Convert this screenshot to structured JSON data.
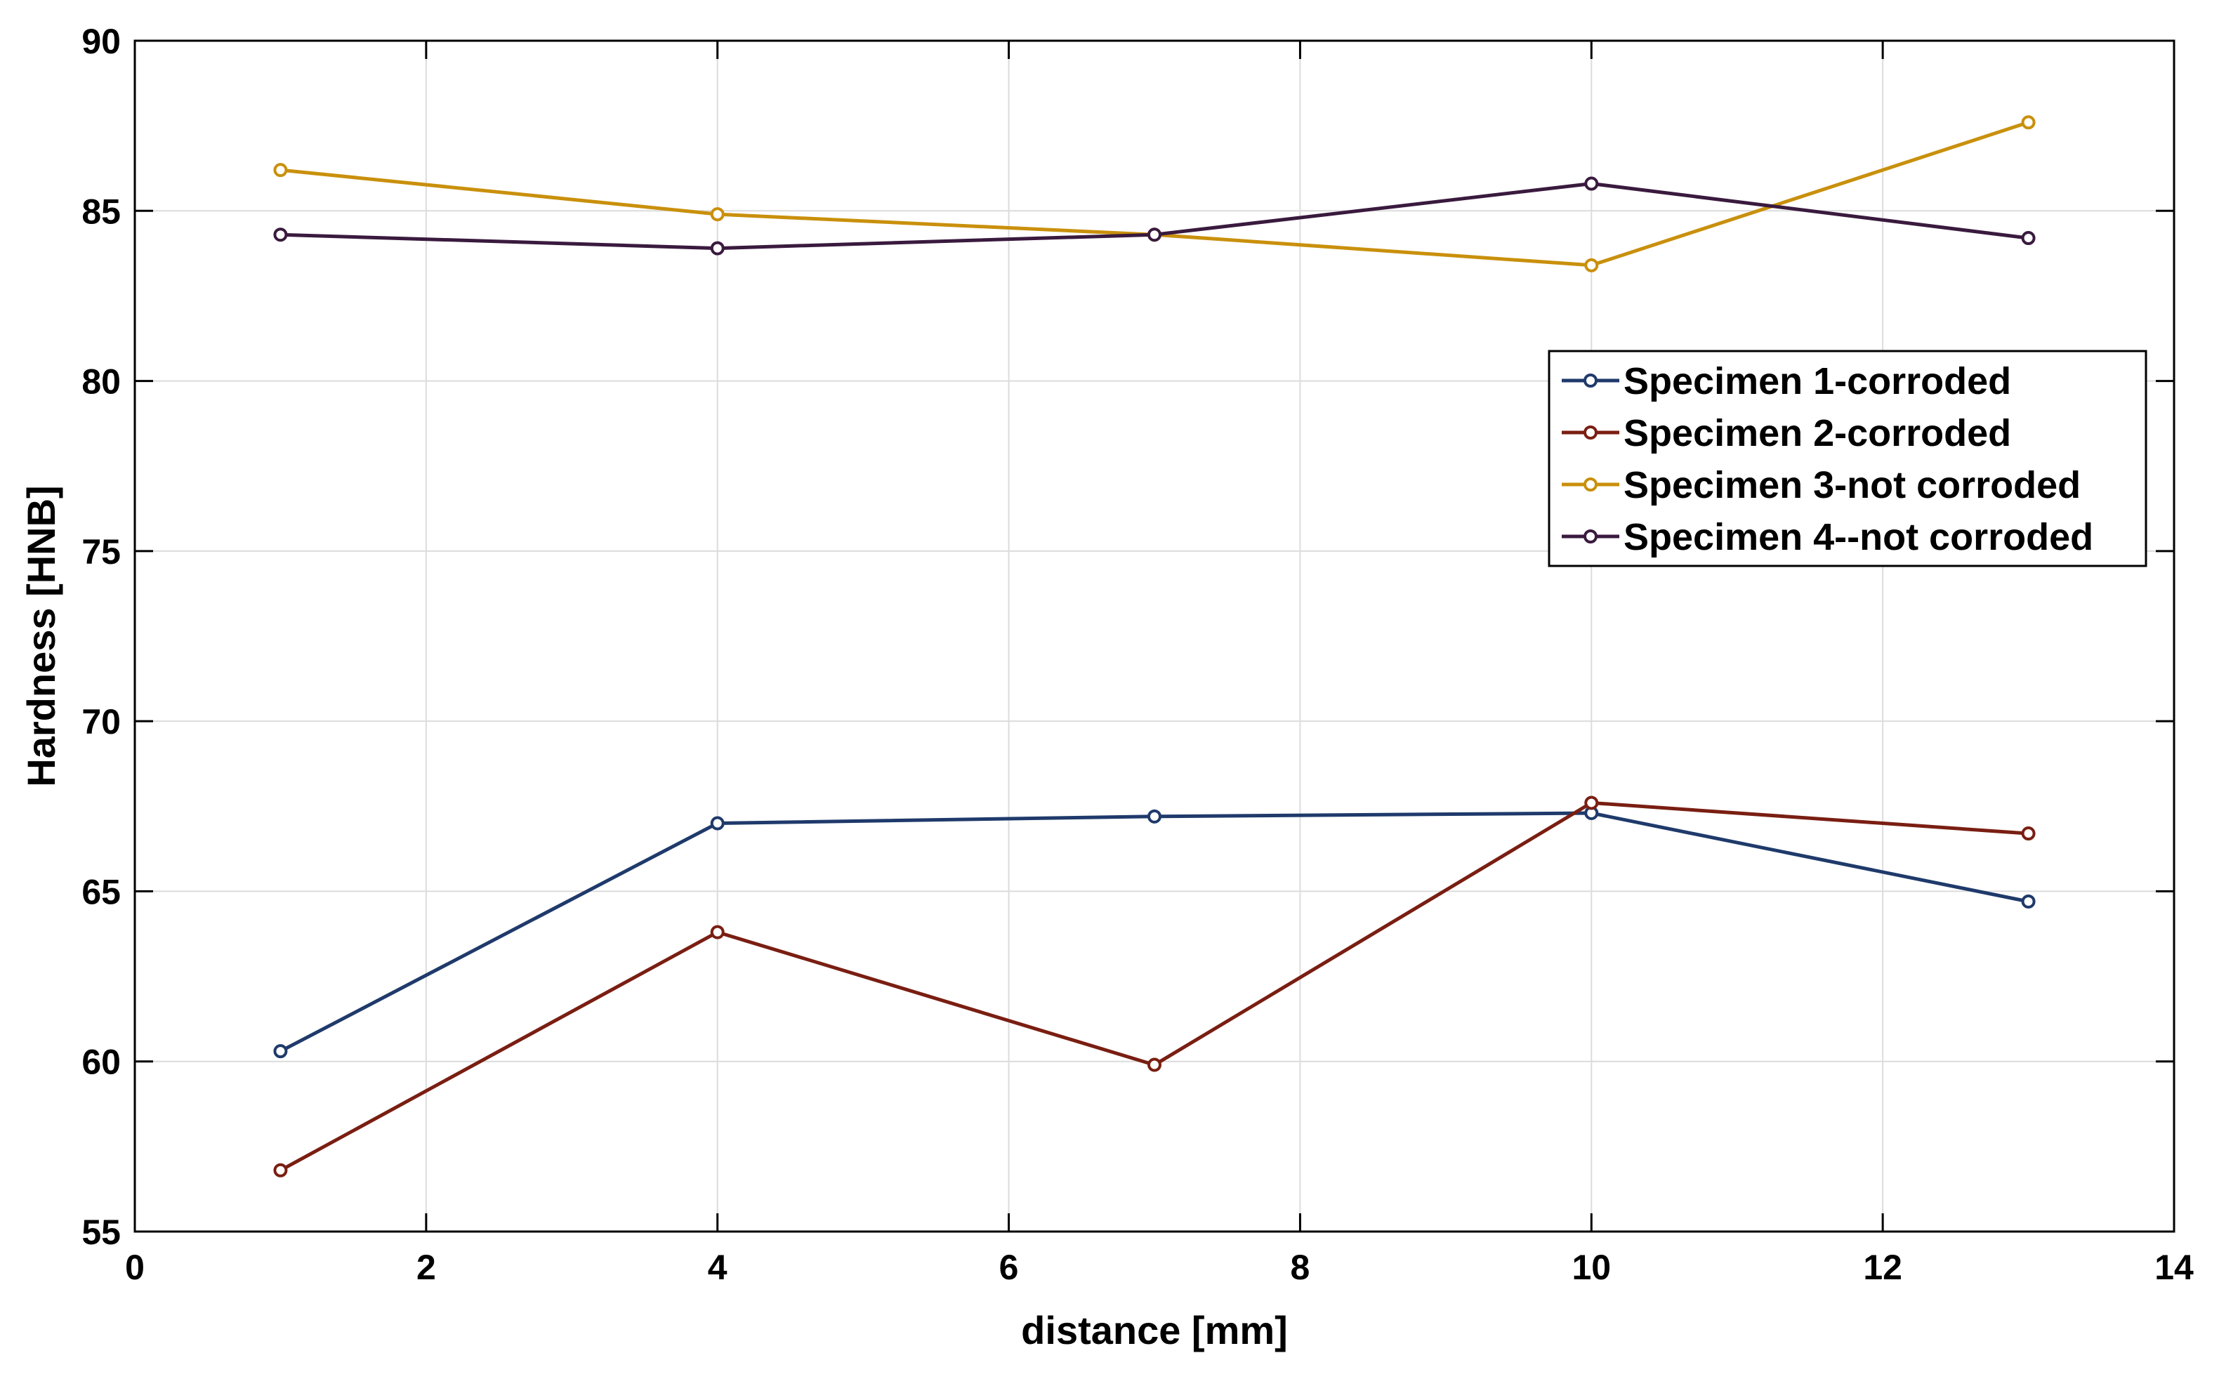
{
  "chart_data": {
    "type": "line",
    "title": "",
    "xlabel": "distance [mm]",
    "ylabel": "Hardness [HNB]",
    "xlim": [
      0,
      14
    ],
    "ylim": [
      55,
      90
    ],
    "xticks": [
      "0",
      "2",
      "4",
      "6",
      "8",
      "10",
      "12",
      "14"
    ],
    "yticks": [
      "55",
      "60",
      "65",
      "70",
      "75",
      "80",
      "85",
      "90"
    ],
    "grid": true,
    "legend_position": "right",
    "x": [
      1,
      4,
      7,
      10,
      13
    ],
    "series": [
      {
        "name": "Specimen 1-corroded",
        "values": [
          60.3,
          67.0,
          67.2,
          67.3,
          64.7
        ],
        "color": "#1f3a6b"
      },
      {
        "name": "Specimen 2-corroded",
        "values": [
          56.8,
          63.8,
          59.9,
          67.6,
          66.7
        ],
        "color": "#7a1e12"
      },
      {
        "name": "Specimen 3-not corroded",
        "values": [
          86.2,
          84.9,
          84.3,
          83.4,
          87.6
        ],
        "color": "#c9900c"
      },
      {
        "name": "Specimen 4--not corroded",
        "values": [
          84.3,
          83.9,
          84.3,
          85.8,
          84.2
        ],
        "color": "#3a1a3e"
      }
    ]
  }
}
